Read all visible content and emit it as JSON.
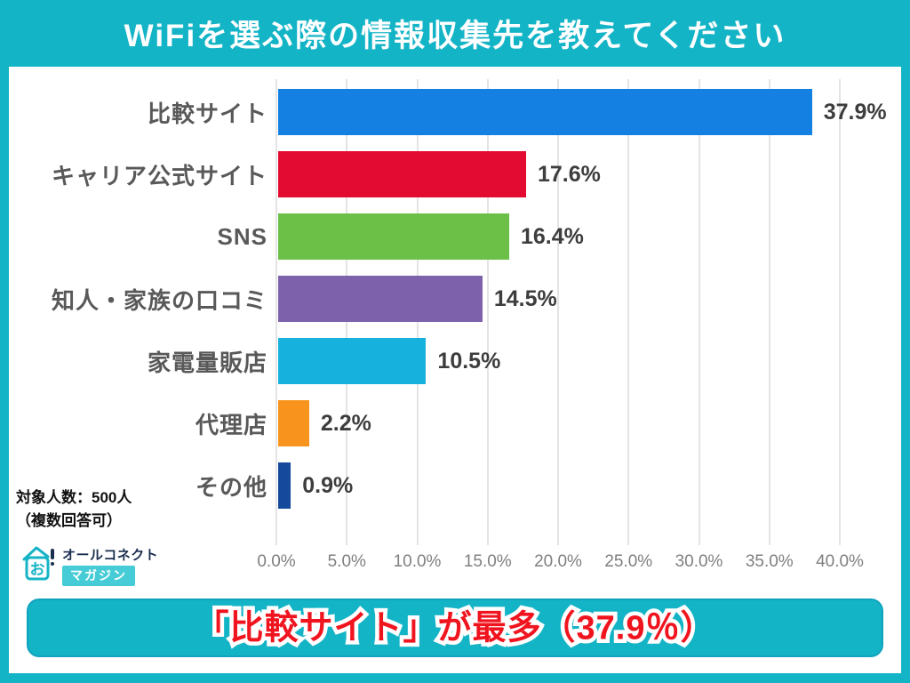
{
  "header": {
    "title": "WiFiを選ぶ際の情報収集先を教えてください"
  },
  "chart_data": {
    "type": "bar",
    "orientation": "horizontal",
    "title": "WiFiを選ぶ際の情報収集先を教えてください",
    "categories": [
      "比較サイト",
      "キャリア公式サイト",
      "SNS",
      "知人・家族の口コミ",
      "家電量販店",
      "代理店",
      "その他"
    ],
    "values": [
      37.9,
      17.6,
      16.4,
      14.5,
      10.5,
      2.2,
      0.9
    ],
    "value_labels": [
      "37.9%",
      "17.6%",
      "16.4%",
      "14.5%",
      "10.5%",
      "2.2%",
      "0.9%"
    ],
    "bar_colors": [
      "#1480e2",
      "#e40b33",
      "#6cbf47",
      "#7d62ab",
      "#17b1de",
      "#f8941d",
      "#15499b"
    ],
    "x_ticks": [
      "0.0%",
      "5.0%",
      "10.0%",
      "15.0%",
      "20.0%",
      "25.0%",
      "30.0%",
      "35.0%",
      "40.0%"
    ],
    "xlim": [
      0,
      40
    ],
    "grid": true,
    "legend": "none"
  },
  "note": {
    "line1": "対象人数：500人",
    "line2": "（複数回答可）"
  },
  "logo": {
    "name": "オールコネクト",
    "sub": "マガジン",
    "icon": "house-logo-icon"
  },
  "footer": {
    "headline": "「比較サイト」が最多（37.9％）"
  },
  "colors": {
    "brand_cyan": "#14b4c7",
    "header_text": "#ffffff",
    "category_label": "#595959",
    "value_label": "#3d3d3d",
    "tick_label": "#7f7f7f",
    "gridline": "#e4e4e4",
    "footer_text_red": "#f0141f",
    "logo_navy": "#1a2e50"
  }
}
